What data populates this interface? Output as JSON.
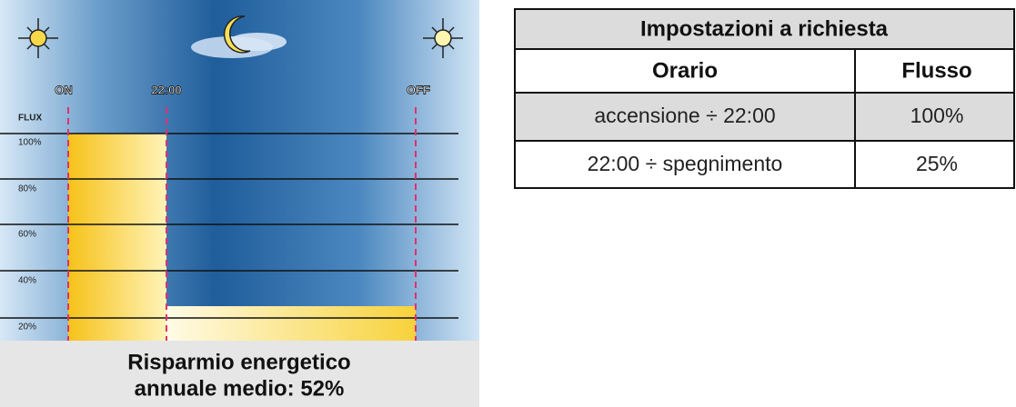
{
  "diagram": {
    "time_labels": [
      "ON",
      "22:00",
      "OFF"
    ],
    "flux_label": "FLUX",
    "flux_levels": [
      "100%",
      "80%",
      "60%",
      "40%",
      "20%"
    ],
    "caption": [
      "Risparmio energetico",
      "annuale medio: 52%"
    ]
  },
  "table": {
    "title": "Impostazioni a richiesta",
    "header": [
      "Orario",
      "Flusso"
    ],
    "rows": [
      [
        "accensione ÷ 22:00",
        "100%"
      ],
      [
        "22:00 ÷ spegnimento",
        "25%"
      ]
    ]
  }
}
